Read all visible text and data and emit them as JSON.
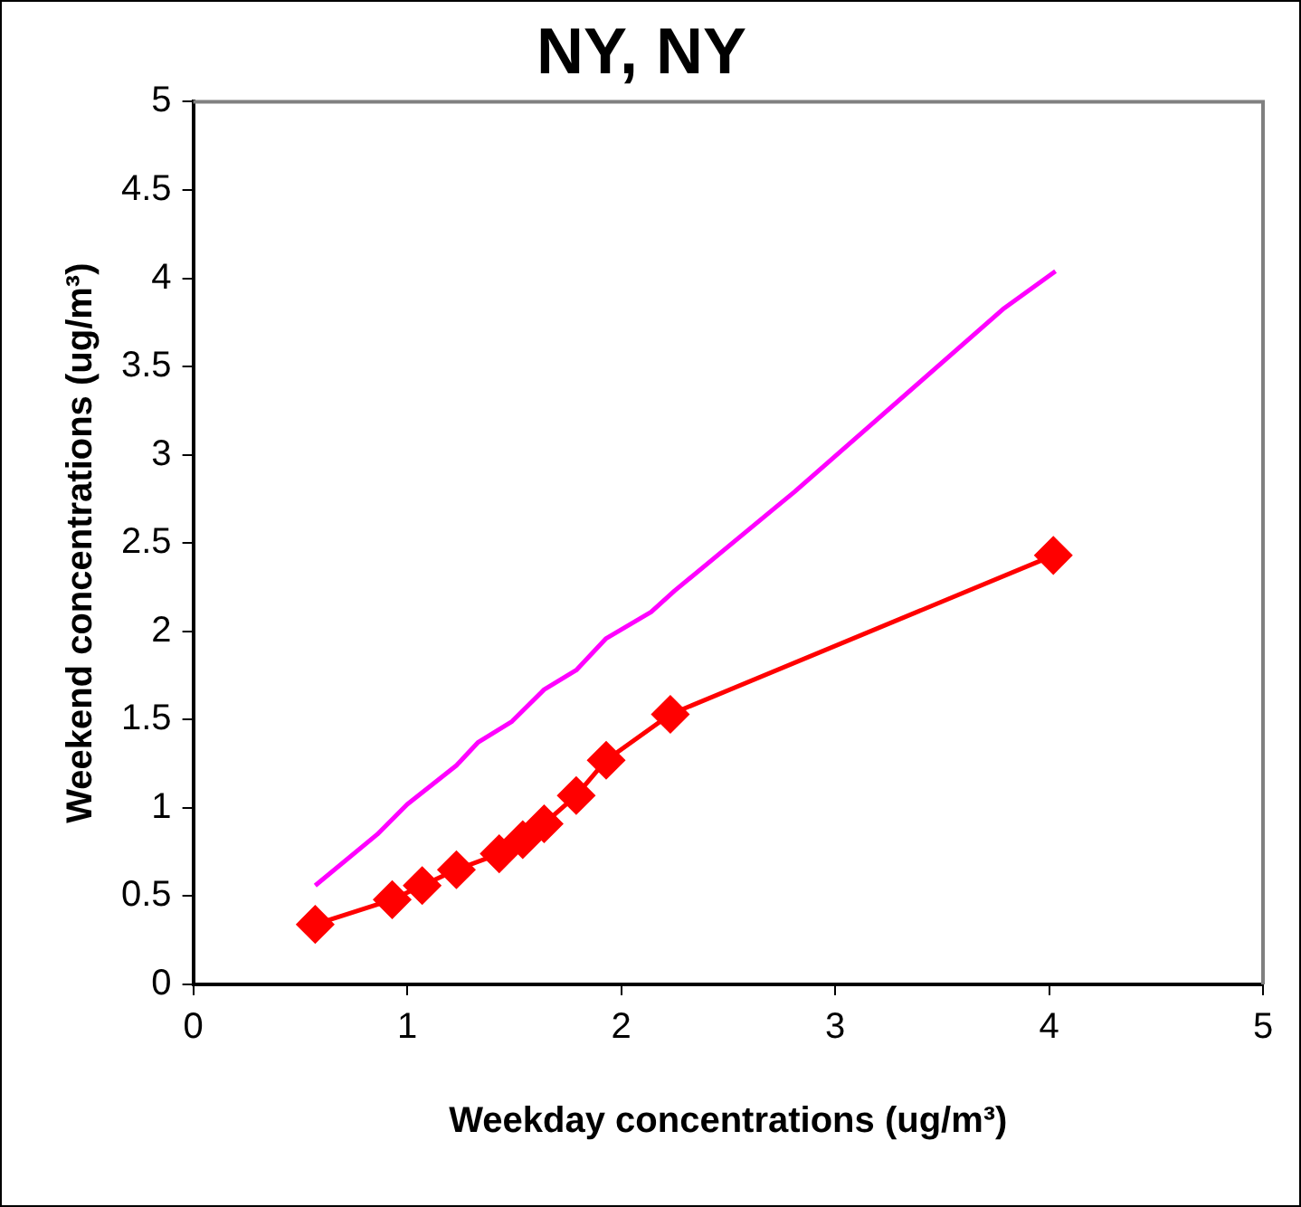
{
  "chart_data": {
    "type": "scatter",
    "title": "NY, NY",
    "xlabel": "Weekday concentrations (ug/m³)",
    "ylabel": "Weekend concentrations (ug/m³)",
    "xlim": [
      0,
      5
    ],
    "xticks": [
      0,
      1,
      2,
      3,
      4,
      5
    ],
    "ylim": [
      0,
      5
    ],
    "yticks": [
      0,
      0.5,
      1,
      1.5,
      2,
      2.5,
      3,
      3.5,
      4,
      4.5,
      5
    ],
    "grid": false,
    "legend": false,
    "series": [
      {
        "type": "line",
        "color": "#ff00ff",
        "marker": "none",
        "x": [
          0.57,
          0.86,
          1.0,
          1.23,
          1.33,
          1.49,
          1.64,
          1.79,
          1.93,
          2.14,
          2.25,
          2.72,
          2.81,
          3.79,
          4.03
        ],
        "values": [
          0.56,
          0.85,
          1.02,
          1.24,
          1.37,
          1.49,
          1.67,
          1.78,
          1.96,
          2.11,
          2.23,
          2.7,
          2.79,
          3.83,
          4.04
        ]
      },
      {
        "type": "line",
        "color": "#ff0000",
        "marker": "diamond",
        "x": [
          0.57,
          0.93,
          1.07,
          1.23,
          1.43,
          1.54,
          1.64,
          1.79,
          1.93,
          2.23,
          4.02
        ],
        "values": [
          0.34,
          0.48,
          0.56,
          0.65,
          0.74,
          0.82,
          0.91,
          1.07,
          1.27,
          1.53,
          2.43
        ]
      }
    ]
  }
}
